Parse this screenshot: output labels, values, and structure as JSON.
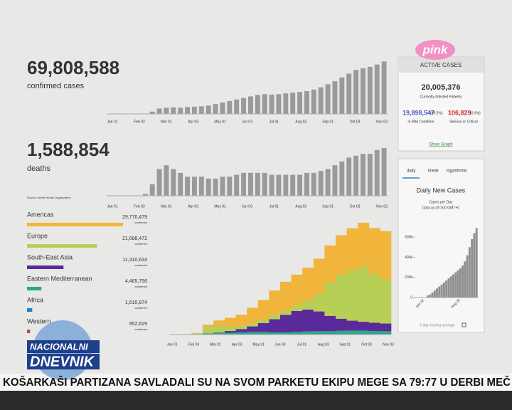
{
  "logo": "pink",
  "confirmed": {
    "value": "69,808,588",
    "label": "confirmed cases"
  },
  "deaths": {
    "value": "1,588,854",
    "label": "deaths"
  },
  "cases_chart": {
    "type": "bar",
    "color": "#9a9a9a",
    "ylim": [
      0,
      750
    ],
    "values": [
      0,
      1,
      2,
      2,
      3,
      5,
      30,
      70,
      80,
      85,
      80,
      90,
      95,
      100,
      110,
      130,
      150,
      170,
      190,
      210,
      230,
      250,
      260,
      255,
      260,
      270,
      280,
      290,
      300,
      320,
      350,
      390,
      430,
      480,
      530,
      580,
      600,
      620,
      650,
      690
    ],
    "x_tick_labels": [
      "Jan 01",
      "Feb 03",
      "Mar 01",
      "Apr 03",
      "May 01",
      "Jun 03",
      "Jul 01",
      "Aug 03",
      "Sep 01",
      "Oct 03",
      "Nov 03"
    ]
  },
  "deaths_chart": {
    "type": "bar",
    "color": "#9a9a9a",
    "ylim": [
      0,
      14
    ],
    "values": [
      0,
      0,
      0,
      0,
      0.1,
      0.5,
      3,
      7,
      8,
      7,
      6,
      5,
      5,
      5,
      4.5,
      4.5,
      5,
      5,
      5.5,
      6,
      6,
      6,
      6,
      5.5,
      5.5,
      5.5,
      5.5,
      5.5,
      6,
      6,
      6.5,
      7,
      8,
      9,
      10,
      10.5,
      11,
      11,
      12,
      12.5
    ],
    "x_tick_labels": [
      "Jan 01",
      "Feb 03",
      "Mar 01",
      "Apr 03",
      "May 01",
      "Jun 03",
      "Jul 01",
      "Aug 03",
      "Sep 01",
      "Oct 03",
      "Nov 03"
    ]
  },
  "source": "Source: World Health Organization",
  "regions": [
    {
      "name": "Americas",
      "value": 29770479,
      "value_label": "29,770,479",
      "unit": "confirmed",
      "color": "#f0b53a"
    },
    {
      "name": "Europe",
      "value": 21688472,
      "value_label": "21,688,472",
      "unit": "confirmed",
      "color": "#b8cf55"
    },
    {
      "name": "South-East Asia",
      "value": 11310634,
      "value_label": "11,310,634",
      "unit": "confirmed",
      "color": "#5a2a9a"
    },
    {
      "name": "Eastern Mediterranean",
      "value": 4465756,
      "value_label": "4,465,756",
      "unit": "confirmed",
      "color": "#2aa88a"
    },
    {
      "name": "Africa",
      "value": 1610874,
      "value_label": "1,610,874",
      "unit": "confirmed",
      "color": "#2a7ad0"
    },
    {
      "name": "Western",
      "value": 952629,
      "value_label": "952,629",
      "unit": "confirmed",
      "color": "#c04060"
    }
  ],
  "area_chart": {
    "type": "stacked-bar",
    "ylim": [
      0,
      550
    ],
    "x_tick_labels": [
      "Jan 01",
      "Feb 03",
      "Mar 01",
      "Apr 03",
      "May 01",
      "Jun 03",
      "Jul 01",
      "Aug 03",
      "Sep 01",
      "Oct 03",
      "Nov 03"
    ],
    "series": [
      {
        "color": "#2aa88a",
        "values": [
          0,
          0,
          1,
          4,
          6,
          8,
          10,
          12,
          12,
          10,
          10,
          12,
          14,
          15,
          15,
          17,
          18,
          18,
          16,
          15
        ]
      },
      {
        "color": "#5a2a9a",
        "values": [
          0,
          0,
          0,
          1,
          3,
          8,
          15,
          25,
          40,
          60,
          80,
          95,
          100,
          90,
          70,
          55,
          45,
          40,
          38,
          35
        ]
      },
      {
        "color": "#b8cf55",
        "values": [
          0,
          0,
          5,
          30,
          30,
          20,
          15,
          15,
          15,
          20,
          20,
          25,
          40,
          80,
          150,
          200,
          230,
          250,
          220,
          200
        ]
      },
      {
        "color": "#f0b53a",
        "values": [
          0,
          0,
          1,
          10,
          25,
          40,
          50,
          70,
          90,
          110,
          130,
          140,
          150,
          160,
          170,
          180,
          190,
          200,
          210,
          220
        ]
      }
    ]
  },
  "active": {
    "title": "ACTIVE CASES",
    "total": "20,005,376",
    "total_label": "Currently Infected Patients",
    "mild": "19,898,547",
    "mild_pct": "(99.5%)",
    "mild_label": "in Mild Condition",
    "serious": "106,829",
    "serious_pct": "(0.5%)",
    "serious_label": "Serious or Critical",
    "link": "Show Graph"
  },
  "daily_panel": {
    "tabs": [
      "daily",
      "linear",
      "logarithmic"
    ],
    "title": "Daily New Cases",
    "subtitle": "Cases per Day",
    "note": "Data as of 0:00 GMT+0",
    "chart": {
      "type": "bar",
      "color": "#8f8f8f",
      "ylim": [
        0,
        750000
      ],
      "yticks": [
        0,
        {
          "value": 200000,
          "label": "200k"
        },
        {
          "value": 400000,
          "label": "400k"
        },
        {
          "value": 600000,
          "label": "600k"
        }
      ],
      "x_tick_labels": [
        "Jun 22",
        "Aug 16"
      ],
      "values": [
        20000,
        30000,
        50000,
        70000,
        90000,
        110000,
        130000,
        150000,
        170000,
        190000,
        210000,
        230000,
        250000,
        270000,
        290000,
        320000,
        360000,
        420000,
        500000,
        580000,
        640000,
        690000
      ]
    },
    "legend": "7-day moving average"
  },
  "news": {
    "brand_top": "NACIONALNI",
    "brand_bottom": "DNEVNIK",
    "ticker": "KOŠARKAŠI PARTIZANA SAVLADALI SU NA SVOM PARKETU EKIPU MEGE SA 79:77 U DERBI MEČ"
  }
}
